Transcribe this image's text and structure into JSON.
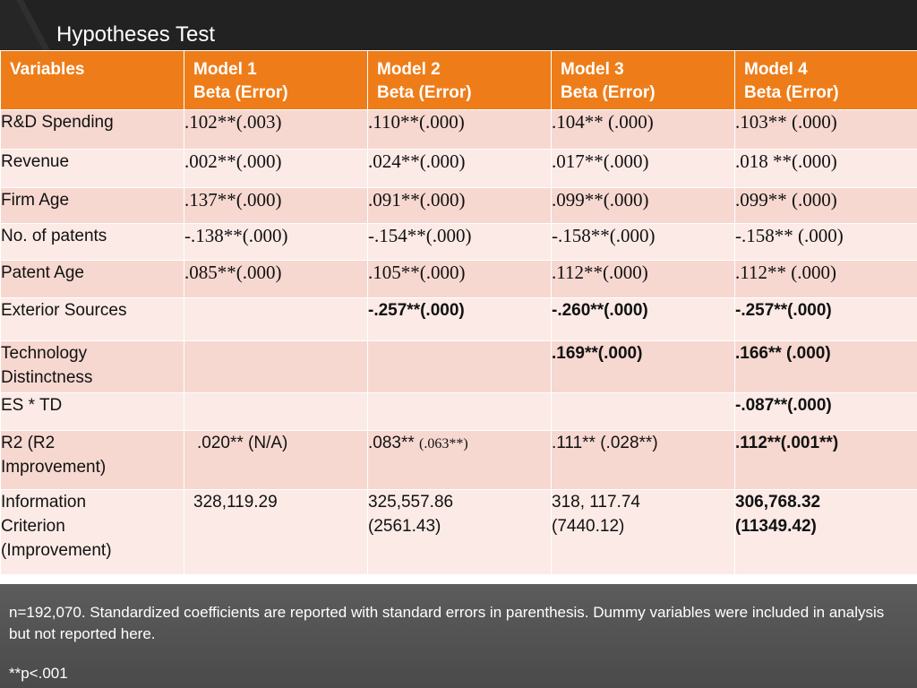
{
  "slide": {
    "title": "Hypotheses Test"
  },
  "table": {
    "header": [
      {
        "line1": "Variables",
        "line2": ""
      },
      {
        "line1": "Model 1",
        "line2": "Beta  (Error)"
      },
      {
        "line1": "Model 2",
        "line2": "Beta  (Error)"
      },
      {
        "line1": "Model 3",
        "line2": "Beta  (Error)"
      },
      {
        "line1": "Model 4",
        "line2": "Beta  (Error)"
      }
    ],
    "rows": [
      {
        "label": [
          "R&D Spending"
        ],
        "m1": ".102**(.003)",
        "m2": ".110**(.000)",
        "m3": ".104** (.000)",
        "m4": ".103** (.000)"
      },
      {
        "label": [
          "Revenue"
        ],
        "m1": ".002**(.000)",
        "m2": ".024**(.000)",
        "m3": ".017**(.000)",
        "m4": ".018 **(.000)"
      },
      {
        "label": [
          "Firm Age"
        ],
        "m1": ".137**(.000)",
        "m2": ".091**(.000)",
        "m3": ".099**(.000)",
        "m4": ".099** (.000)"
      },
      {
        "label": [
          "No. of patents"
        ],
        "m1": "-.138**(.000)",
        "m2": "-.154**(.000)",
        "m3": "-.158**(.000)",
        "m4": "-.158** (.000)"
      },
      {
        "label": [
          "Patent Age"
        ],
        "m1": ".085**(.000)",
        "m2": ".105**(.000)",
        "m3": ".112**(.000)",
        "m4": ".112** (.000)"
      },
      {
        "label": [
          "Exterior Sources"
        ],
        "m1": "",
        "m2": "-.257**(.000)",
        "m3": "-.260**(.000)",
        "m4": "-.257**(.000)"
      },
      {
        "label": [
          "Technology",
          "Distinctness"
        ],
        "m1": "",
        "m2": "",
        "m3": ".169**(.000)",
        "m4": ".166** (.000)"
      },
      {
        "label": [
          "ES * TD"
        ],
        "m1": "",
        "m2": "",
        "m3": "",
        "m4": "-.087**(.000)"
      },
      {
        "label": [
          "R2 (R2",
          "Improvement)"
        ],
        "m1": ".020** (N/A)",
        "m2_main": ".083** ",
        "m2_small": "(.063**)",
        "m3": ".111** (.028**)",
        "m4": ".112**(.001**)"
      },
      {
        "label": [
          "Information",
          "Criterion",
          "(Improvement)"
        ],
        "m1": "328,119.29",
        "m2": [
          "325,557.86",
          "(2561.43)"
        ],
        "m3": [
          "318, 117.74",
          "(7440.12)"
        ],
        "m4": [
          "306,768.32",
          "(11349.42)"
        ]
      }
    ]
  },
  "footer": {
    "note": "n=192,070. Standardized coefficients are reported with standard errors in parenthesis. Dummy variables were included in analysis but not reported here.",
    "significance": "**p<.001"
  },
  "colors": {
    "header_orange": "#ee7d19",
    "row_dark": "#f6d8d0",
    "row_light": "#fbeae6",
    "background": "#232323"
  }
}
